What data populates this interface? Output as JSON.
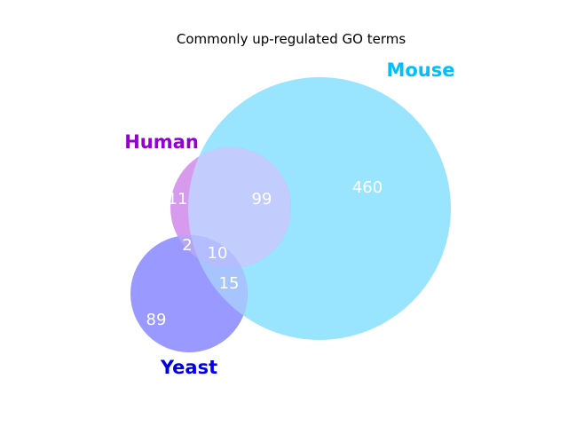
{
  "title": "Commonly up-regulated GO terms",
  "sets": {
    "mouse": {
      "label": "Mouse",
      "color": "#00bfff",
      "fill": "#99e5ff"
    },
    "human": {
      "label": "Human",
      "color": "#9400d3",
      "fill": "#d69bed"
    },
    "yeast": {
      "label": "Yeast",
      "color": "#0000e6",
      "fill": "#9999ff"
    }
  },
  "overlap_fills": {
    "human_mouse": "#c2ccfd",
    "mouse_yeast": "#a6c5ff",
    "human_yeast": "#b4a6f0",
    "all_three": "#b3bdff"
  },
  "regions": {
    "human_only": "11",
    "mouse_only": "460",
    "yeast_only": "89",
    "human_mouse": "99",
    "human_yeast": "2",
    "mouse_yeast": "15",
    "all_three": "10"
  }
}
